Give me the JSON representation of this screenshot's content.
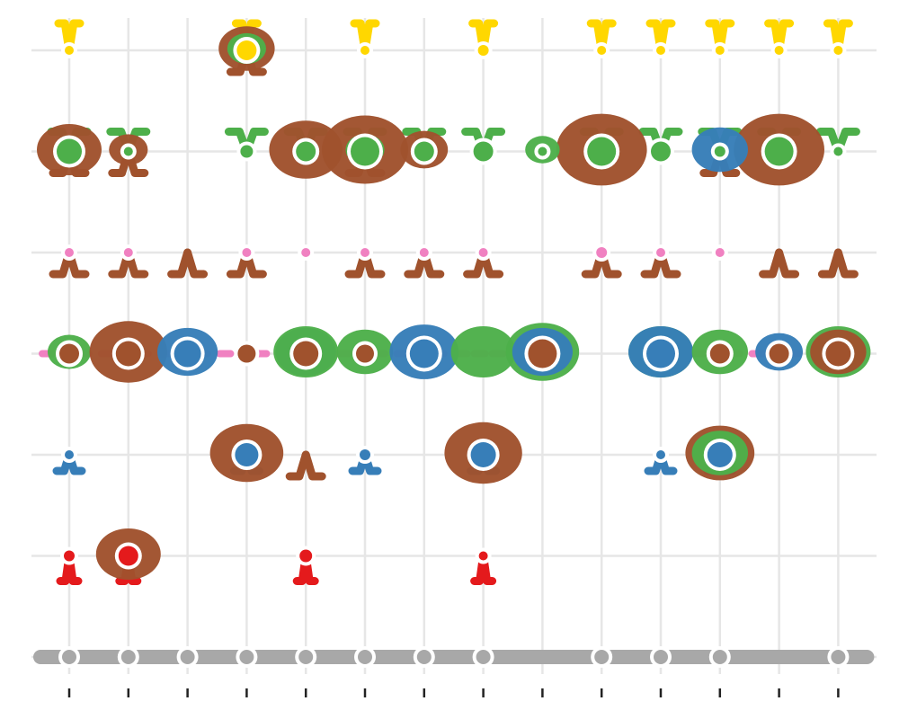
{
  "colors": {
    "grid": "#e6e6e6",
    "tick": "#222222",
    "outline": "#ffffff",
    "grey": "#a8a8a8",
    "brown": "#a0522d",
    "green": "#4daf4a",
    "gold": "#ffd700",
    "pink": "#f081c1",
    "blue": "#377eb8",
    "red": "#e41a1c"
  },
  "chart_data": {
    "type": "scatter",
    "title": "",
    "xlabel": "",
    "ylabel": "",
    "x_categories": 14,
    "y_categories": 7,
    "grid": true,
    "legend": "none",
    "tick_labels": [],
    "series": [
      {
        "color": "grey",
        "points": [
          [
            1,
            1
          ],
          [
            2,
            1
          ],
          [
            3,
            1
          ],
          [
            4,
            1
          ],
          [
            5,
            1
          ],
          [
            6,
            1
          ],
          [
            7,
            1
          ],
          [
            8,
            1
          ],
          [
            9,
            1
          ],
          [
            10,
            1
          ],
          [
            11,
            1
          ],
          [
            12,
            1
          ],
          [
            13,
            1
          ],
          [
            14,
            1
          ]
        ]
      },
      {
        "color": "brown",
        "points": [
          [
            4,
            7
          ],
          [
            1,
            6
          ],
          [
            2,
            6
          ],
          [
            6,
            6
          ],
          [
            12,
            6
          ],
          [
            5,
            3
          ],
          [
            1,
            5
          ],
          [
            2,
            5
          ],
          [
            3,
            5
          ],
          [
            4,
            5
          ],
          [
            6,
            5
          ],
          [
            7,
            5
          ],
          [
            8,
            5
          ],
          [
            10,
            5
          ],
          [
            11,
            5
          ],
          [
            13,
            5
          ],
          [
            14,
            5
          ]
        ]
      },
      {
        "color": "green",
        "points": [
          [
            1,
            6
          ],
          [
            2,
            6
          ],
          [
            4,
            6
          ],
          [
            5,
            6
          ],
          [
            6,
            6
          ],
          [
            7,
            6
          ],
          [
            8,
            6
          ],
          [
            10,
            6
          ],
          [
            11,
            6
          ],
          [
            12,
            6
          ],
          [
            13,
            6
          ],
          [
            14,
            6
          ]
        ]
      },
      {
        "color": "pink",
        "points": [
          [
            1,
            4
          ],
          [
            2,
            4
          ],
          [
            3,
            4
          ],
          [
            4,
            4
          ],
          [
            5,
            4
          ],
          [
            6,
            4
          ],
          [
            7,
            4
          ],
          [
            8,
            4
          ],
          [
            9,
            4
          ],
          [
            11,
            4
          ],
          [
            12,
            4
          ],
          [
            13,
            4
          ]
        ]
      },
      {
        "color": "blue",
        "points": [
          [
            1,
            3
          ],
          [
            4,
            3
          ],
          [
            6,
            3
          ],
          [
            8,
            3
          ],
          [
            11,
            3
          ],
          [
            12,
            3
          ]
        ]
      },
      {
        "color": "red",
        "points": [
          [
            1,
            2
          ],
          [
            2,
            2
          ],
          [
            5,
            2
          ],
          [
            8,
            2
          ]
        ]
      },
      {
        "color": "gold",
        "points": [
          [
            1,
            7
          ],
          [
            4,
            7
          ],
          [
            6,
            7
          ],
          [
            8,
            7
          ],
          [
            10,
            7
          ],
          [
            11,
            7
          ],
          [
            12,
            7
          ],
          [
            13,
            7
          ],
          [
            14,
            7
          ]
        ]
      }
    ]
  }
}
